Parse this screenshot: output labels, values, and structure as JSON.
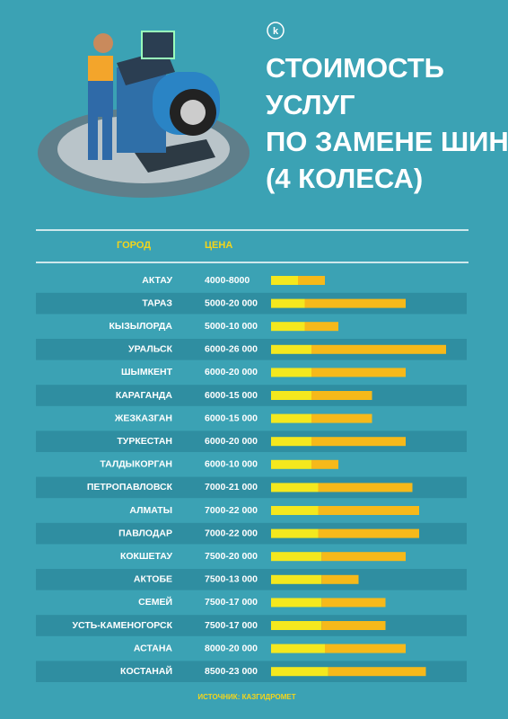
{
  "chart_data": {
    "type": "range_bar",
    "logo": "k",
    "title_lines": [
      "СТОИМОСТЬ",
      "УСЛУГ",
      "ПО ЗАМЕНЕ ШИН",
      "(4 КОЛЕСА)"
    ],
    "column_headers": [
      "ГОРОД",
      "ЦЕНА"
    ],
    "categories": [
      "АКТАУ",
      "ТАРАЗ",
      "КЫЗЫЛОРДА",
      "УРАЛЬСК",
      "ШЫМКЕНТ",
      "КАРАГАНДА",
      "ЖЕЗКАЗГАН",
      "ТУРКЕСТАН",
      "ТАЛДЫКОРГАН",
      "ПЕТРОПАВЛОВСК",
      "АЛМАТЫ",
      "ПАВЛОДАР",
      "КОКШЕТАУ",
      "АКТОБЕ",
      "СЕМЕЙ",
      "УСТЬ-КАМЕНОГОРСК",
      "АСТАНА",
      "КОСТАНАЙ"
    ],
    "low": [
      4000,
      5000,
      5000,
      6000,
      6000,
      6000,
      6000,
      6000,
      6000,
      7000,
      7000,
      7000,
      7500,
      7500,
      7500,
      7500,
      8000,
      8500
    ],
    "high": [
      8000,
      20000,
      10000,
      26000,
      20000,
      15000,
      15000,
      20000,
      10000,
      21000,
      22000,
      22000,
      20000,
      13000,
      17000,
      17000,
      20000,
      23000
    ],
    "value_labels": [
      "4000-8000",
      "5000-20 000",
      "5000-10 000",
      "6000-26 000",
      "6000-20 000",
      "6000-15 000",
      "6000-15 000",
      "6000-20 000",
      "6000-10 000",
      "7000-21 000",
      "7000-22 000",
      "7000-22 000",
      "7500-20 000",
      "7500-13 000",
      "7500-17 000",
      "7500-17 000",
      "8000-20 000",
      "8500-23 000"
    ],
    "low_color": "#f4e81e",
    "high_color": "#f6b91a",
    "xlim": [
      0,
      26000
    ],
    "source": "ИСТОЧНИК: КАЗГИДРОМЕТ"
  }
}
